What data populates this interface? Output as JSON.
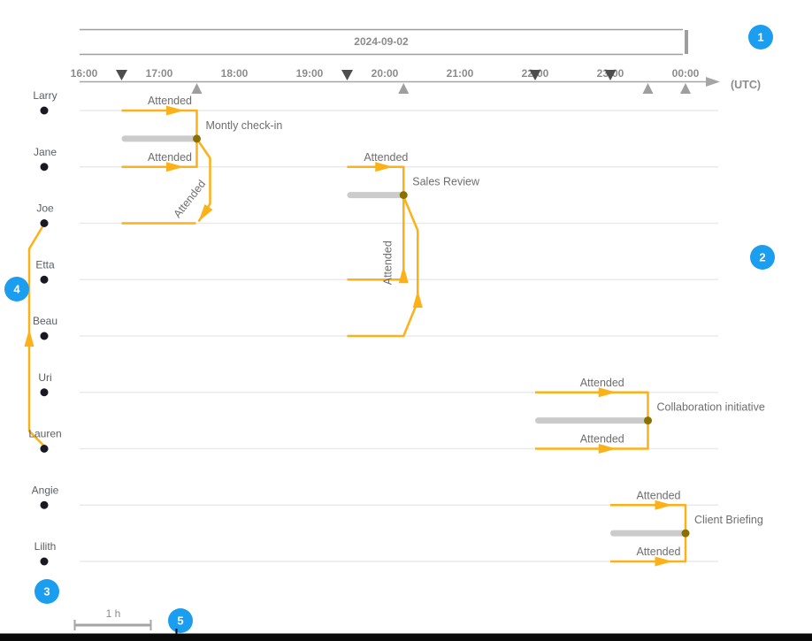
{
  "colors": {
    "accent": "#FBB117",
    "duration_bar": "#CBCBCB",
    "event_dot": "#8A7000",
    "callout": "#1B9DF0",
    "axis": "#A5A5A5",
    "band": "#9E9E9E",
    "lane_line": "#EAEAEA",
    "person_dot": "#191923",
    "start_marker": "#4D4D4D",
    "end_marker": "#9E9E9E",
    "bottom_bar": "#0A0A0A"
  },
  "chart_data": {
    "type": "timeline",
    "title": "2024-09-02",
    "x_axis": {
      "label": "(UTC)",
      "ticks": [
        "16:00",
        "17:00",
        "18:00",
        "19:00",
        "20:00",
        "21:00",
        "22:00",
        "23:00",
        "00:00"
      ],
      "start": "16:00",
      "end": "00:00",
      "start_markers": [
        "16:30",
        "19:30",
        "22:00",
        "23:00"
      ],
      "end_markers": [
        "17:30",
        "20:15",
        "23:30",
        "00:00"
      ]
    },
    "lanes": [
      "Larry",
      "Jane",
      "Joe",
      "Etta",
      "Beau",
      "Uri",
      "Lauren",
      "Angie",
      "Lilith"
    ],
    "events": [
      {
        "title": "Montly check-in",
        "start": "16:30",
        "end": "17:30",
        "between_rows": [
          "Larry",
          "Jane"
        ],
        "attendances": [
          {
            "person": "Larry",
            "label": "Attended",
            "connector": "inline"
          },
          {
            "person": "Jane",
            "label": "Attended",
            "connector": "inline"
          },
          {
            "person": "Joe",
            "label": "Attended",
            "connector": "hook-from-event"
          }
        ]
      },
      {
        "title": "Sales Review",
        "start": "19:30",
        "end": "20:15",
        "between_rows": [
          "Jane",
          "Joe"
        ],
        "attendances": [
          {
            "person": "Jane",
            "label": "Attended",
            "connector": "inline"
          },
          {
            "person": "Etta",
            "label": "Attended",
            "connector": "vertical-to-event"
          },
          {
            "person": "Beau",
            "label": "",
            "connector": "hook-to-event"
          }
        ]
      },
      {
        "title": "Collaboration initiative",
        "start": "22:00",
        "end": "23:30",
        "between_rows": [
          "Uri",
          "Lauren"
        ],
        "attendances": [
          {
            "person": "Uri",
            "label": "Attended",
            "connector": "inline"
          },
          {
            "person": "Lauren",
            "label": "Attended",
            "connector": "inline"
          }
        ]
      },
      {
        "title": "Client Briefing",
        "start": "23:00",
        "end": "00:00",
        "between_rows": [
          "Angie",
          "Lilith"
        ],
        "attendances": [
          {
            "person": "Angie",
            "label": "Attended",
            "connector": "inline"
          },
          {
            "person": "Lilith",
            "label": "Attended",
            "connector": "inline"
          }
        ]
      }
    ],
    "relation": {
      "from": "Lauren",
      "to": "Joe"
    },
    "scale_bar_label": "1 h",
    "callouts": [
      "1",
      "2",
      "3",
      "4",
      "5"
    ]
  }
}
